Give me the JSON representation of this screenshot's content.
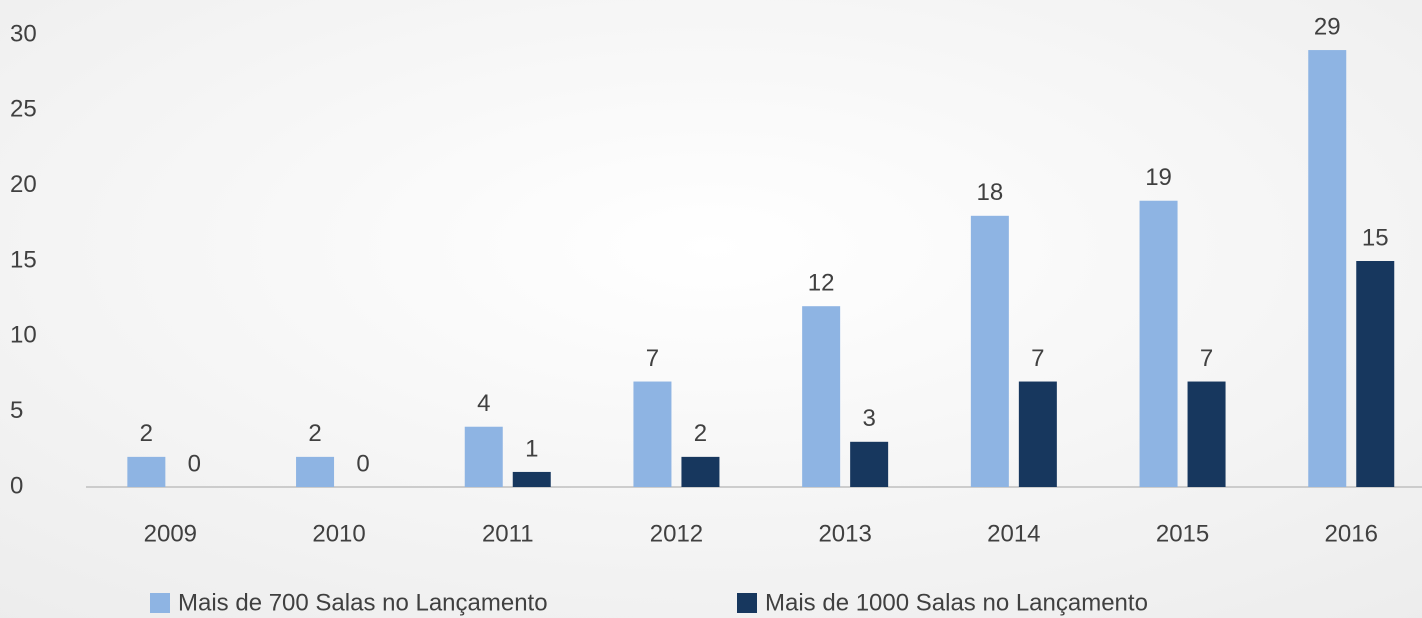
{
  "chart_data": {
    "type": "bar",
    "categories": [
      "2009",
      "2010",
      "2011",
      "2012",
      "2013",
      "2014",
      "2015",
      "2016"
    ],
    "series": [
      {
        "name": "Mais de 700 Salas no Lançamento",
        "color": "#8eb4e3",
        "values": [
          2,
          2,
          4,
          7,
          12,
          18,
          19,
          29
        ]
      },
      {
        "name": "Mais de 1000 Salas no Lançamento",
        "color": "#17375e",
        "values": [
          0,
          0,
          1,
          2,
          3,
          7,
          7,
          15
        ]
      }
    ],
    "ylim": [
      0,
      30
    ],
    "yticks": [
      0,
      5,
      10,
      15,
      20,
      25,
      30
    ],
    "grid": false,
    "legend": "bottom"
  }
}
